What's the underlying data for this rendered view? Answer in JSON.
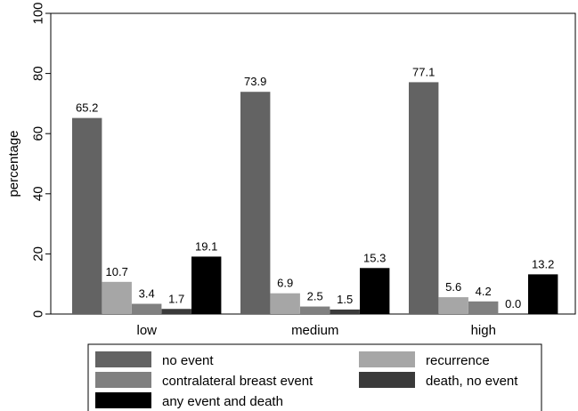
{
  "chart_data": {
    "type": "bar",
    "ylabel": "percentage",
    "xlabel": "",
    "ylim": [
      0,
      100
    ],
    "yticks": [
      0,
      20,
      40,
      60,
      80,
      100
    ],
    "grid": false,
    "legend_position": "bottom",
    "categories": [
      "low",
      "medium",
      "high"
    ],
    "series": [
      {
        "name": "no event",
        "color": "#636363",
        "values": [
          65.2,
          73.9,
          77.1
        ],
        "labels": [
          "65.2",
          "73.9",
          "77.1"
        ]
      },
      {
        "name": "recurrence",
        "color": "#a6a6a6",
        "values": [
          10.7,
          6.9,
          5.6
        ],
        "labels": [
          "10.7",
          "6.9",
          "5.6"
        ]
      },
      {
        "name": "contralateral breast event",
        "color": "#808080",
        "values": [
          3.4,
          2.5,
          4.2
        ],
        "labels": [
          "3.4",
          "2.5",
          "4.2"
        ]
      },
      {
        "name": "death, no event",
        "color": "#3a3a3a",
        "values": [
          1.7,
          1.5,
          0.0
        ],
        "labels": [
          "1.7",
          "1.5",
          "0.0"
        ]
      },
      {
        "name": "any event and death",
        "color": "#000000",
        "values": [
          19.1,
          15.3,
          13.2
        ],
        "labels": [
          "19.1",
          "15.3",
          "13.2"
        ]
      }
    ]
  }
}
